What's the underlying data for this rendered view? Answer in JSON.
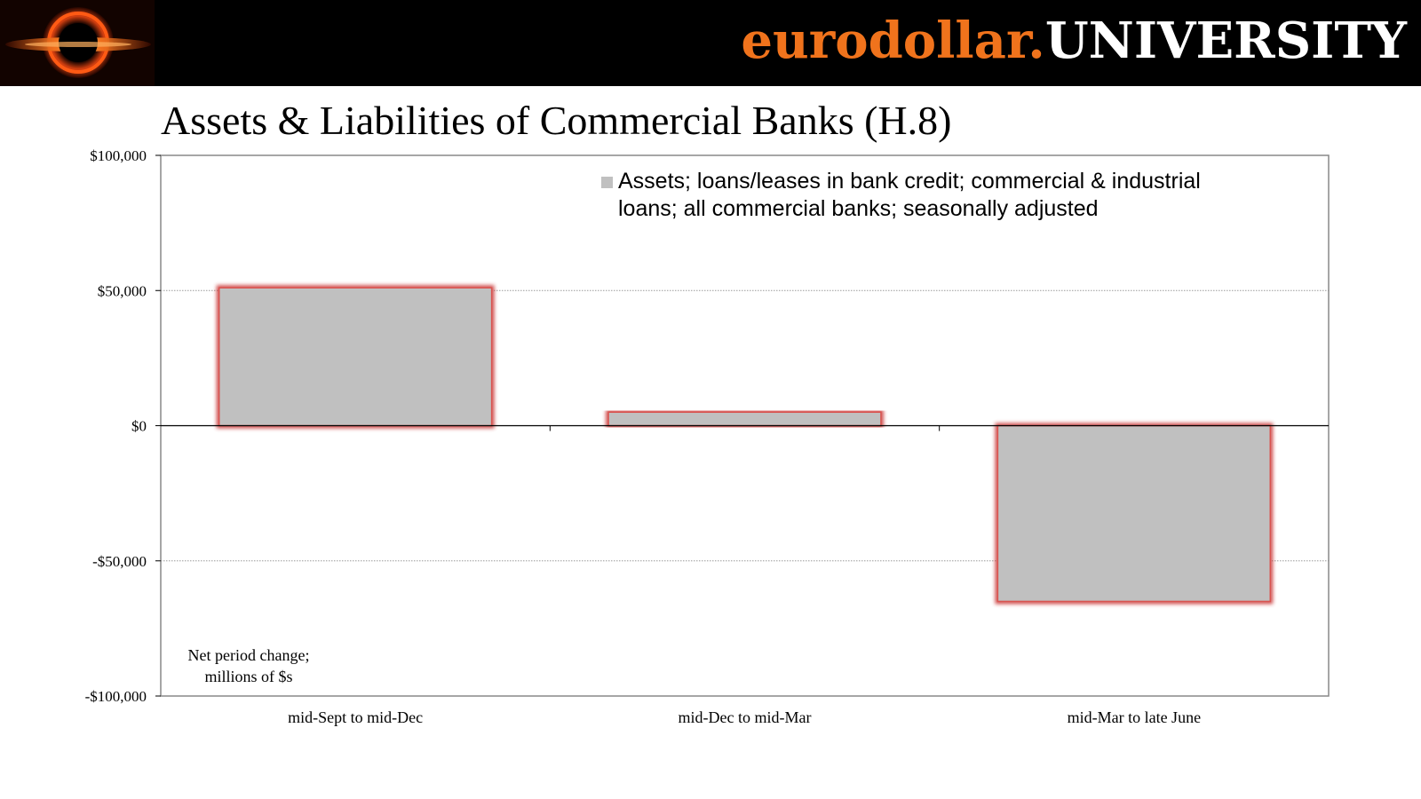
{
  "header": {
    "brand_part1": "eurodollar.",
    "brand_part2": "UNIVERSITY"
  },
  "slide": {
    "title": "Assets & Liabilities of Commercial Banks (H.8)"
  },
  "colors": {
    "brand_orange": "#f0731c",
    "bar_fill": "#c0c0c0",
    "bar_glow": "#c83232",
    "banner": "#000000"
  },
  "chart_data": {
    "type": "bar",
    "categories": [
      "mid-Sept to mid-Dec",
      "mid-Dec to mid-Mar",
      "mid-Mar to late June"
    ],
    "series": [
      {
        "name": "Assets; loans/leases in bank credit; commercial & industrial loans; all commercial banks; seasonally adjusted",
        "values": [
          51000,
          5000,
          -65000
        ]
      }
    ],
    "legend_lines": [
      "Assets; loans/leases in bank credit; commercial & industrial",
      "loans; all commercial banks; seasonally adjusted"
    ],
    "legend_position": "top-right",
    "ylim": [
      -100000,
      100000
    ],
    "yticks": [
      100000,
      50000,
      0,
      -50000,
      -100000
    ],
    "ytick_labels": [
      "$100,000",
      "$50,000",
      "$0",
      "-$50,000",
      "-$100,000"
    ],
    "annotation_lines": [
      "Net period change;",
      "millions of $s"
    ],
    "grid": "dotted horizontal"
  }
}
